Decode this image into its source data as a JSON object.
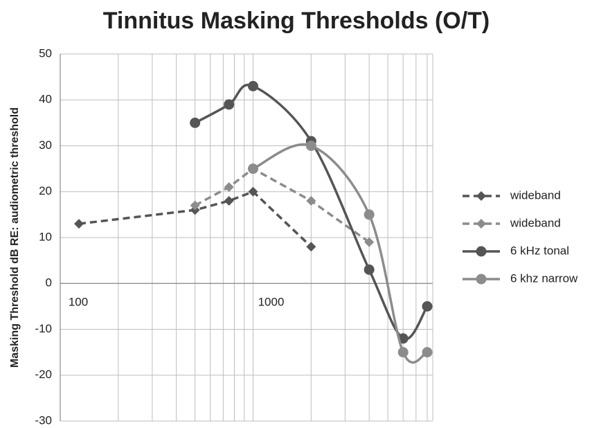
{
  "chart_data": {
    "type": "line",
    "title": "Tinnitus Masking Thresholds (O/T)",
    "y_label": "Masking Threshold dB RE: audiometric threshold",
    "log_x": true,
    "grid": true,
    "legend": "right",
    "xlim": [
      100,
      10000
    ],
    "xticks": [
      100,
      1000
    ],
    "ylim": [
      -30,
      50
    ],
    "yticks": [
      -30,
      -20,
      -10,
      0,
      10,
      20,
      30,
      40,
      50
    ],
    "series": [
      {
        "name": "wideband",
        "color": "#555555",
        "dashed": true,
        "marker": "diamond",
        "smooth": false,
        "x": [
          125,
          500,
          750,
          1000,
          2000
        ],
        "values": [
          13,
          16,
          18,
          20,
          8
        ]
      },
      {
        "name": "wideband",
        "color": "#8c8c8c",
        "dashed": true,
        "marker": "diamond",
        "smooth": false,
        "x": [
          500,
          750,
          1000,
          2000,
          4000
        ],
        "values": [
          17,
          21,
          25,
          18,
          9
        ]
      },
      {
        "name": "6 kHz tonal",
        "color": "#555555",
        "dashed": false,
        "marker": "circle",
        "smooth": true,
        "x": [
          500,
          750,
          1000,
          2000,
          4000,
          6000,
          8000
        ],
        "values": [
          35,
          39,
          43,
          31,
          3,
          -12,
          -5
        ]
      },
      {
        "name": "6 khz narrow",
        "color": "#8c8c8c",
        "dashed": false,
        "marker": "circle",
        "smooth": true,
        "x": [
          1000,
          2000,
          4000,
          6000,
          8000
        ],
        "values": [
          25,
          30,
          15,
          -15,
          -15
        ]
      }
    ]
  }
}
